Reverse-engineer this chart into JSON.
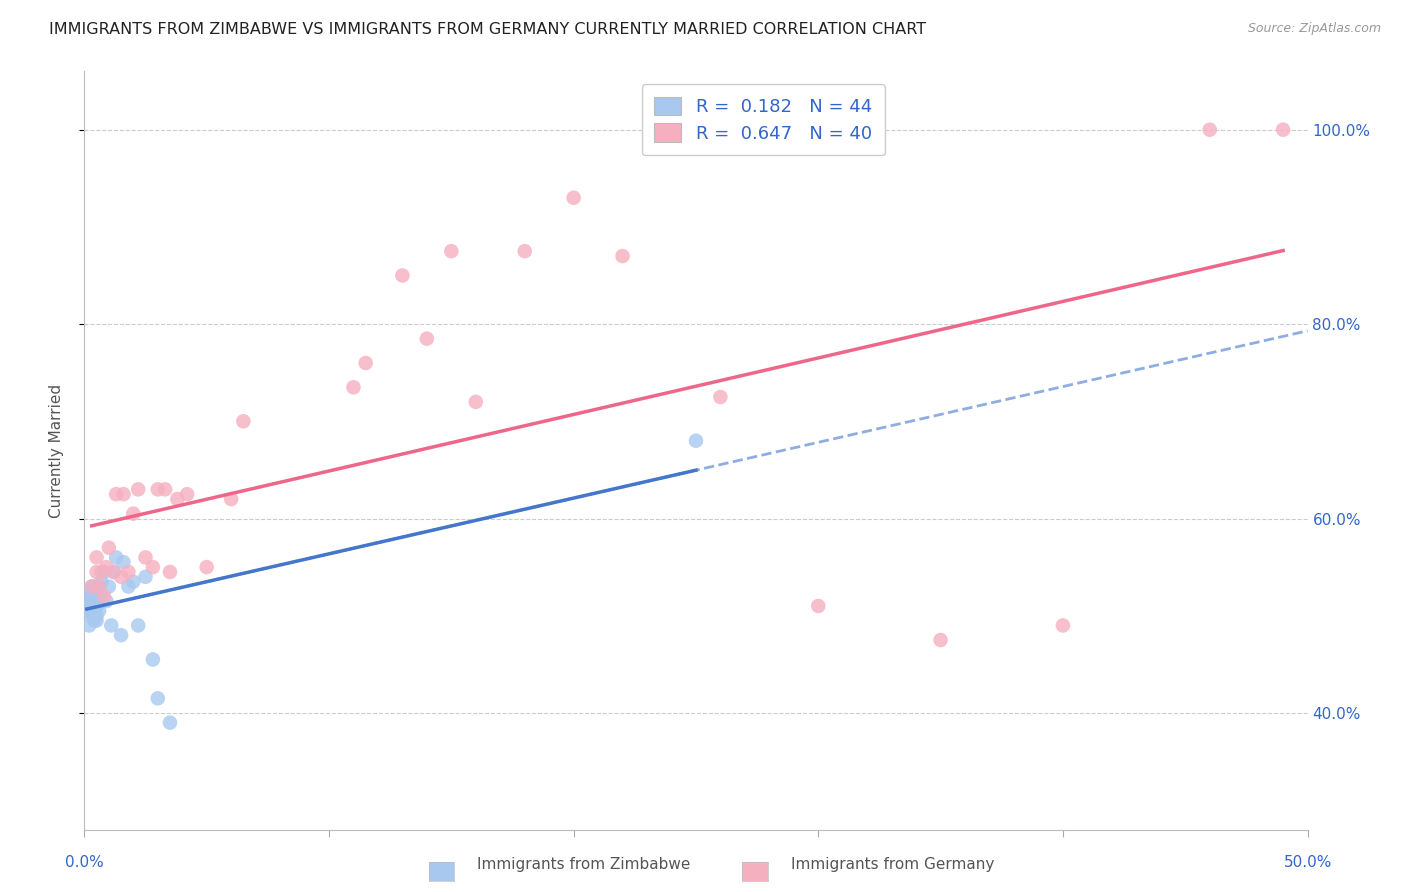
{
  "title": "IMMIGRANTS FROM ZIMBABWE VS IMMIGRANTS FROM GERMANY CURRENTLY MARRIED CORRELATION CHART",
  "source": "Source: ZipAtlas.com",
  "ylabel": "Currently Married",
  "ylabel_right_ticks": [
    "40.0%",
    "60.0%",
    "80.0%",
    "100.0%"
  ],
  "ylabel_right_vals": [
    0.4,
    0.6,
    0.8,
    1.0
  ],
  "xlim": [
    0.0,
    0.5
  ],
  "ylim": [
    0.28,
    1.06
  ],
  "zimbabwe_color": "#A8C8F0",
  "germany_color": "#F5B0C0",
  "zimbabwe_line_color": "#4477CC",
  "germany_line_color": "#EE6688",
  "legend_r_zimbabwe": "0.182",
  "legend_n_zimbabwe": "44",
  "legend_r_germany": "0.647",
  "legend_n_germany": "40",
  "zimbabwe_x": [
    0.001,
    0.001,
    0.001,
    0.002,
    0.002,
    0.002,
    0.002,
    0.002,
    0.003,
    0.003,
    0.003,
    0.003,
    0.003,
    0.003,
    0.004,
    0.004,
    0.004,
    0.004,
    0.004,
    0.005,
    0.005,
    0.005,
    0.005,
    0.005,
    0.006,
    0.006,
    0.007,
    0.007,
    0.008,
    0.009,
    0.01,
    0.011,
    0.012,
    0.013,
    0.015,
    0.016,
    0.018,
    0.02,
    0.022,
    0.025,
    0.028,
    0.03,
    0.035,
    0.25
  ],
  "zimbabwe_y": [
    0.505,
    0.51,
    0.52,
    0.49,
    0.505,
    0.515,
    0.52,
    0.525,
    0.5,
    0.51,
    0.515,
    0.52,
    0.525,
    0.53,
    0.495,
    0.505,
    0.51,
    0.52,
    0.53,
    0.495,
    0.5,
    0.51,
    0.515,
    0.52,
    0.505,
    0.53,
    0.52,
    0.535,
    0.545,
    0.515,
    0.53,
    0.49,
    0.545,
    0.56,
    0.48,
    0.555,
    0.53,
    0.535,
    0.49,
    0.54,
    0.455,
    0.415,
    0.39,
    0.68
  ],
  "germany_x": [
    0.003,
    0.005,
    0.005,
    0.006,
    0.007,
    0.008,
    0.009,
    0.01,
    0.012,
    0.013,
    0.015,
    0.016,
    0.018,
    0.02,
    0.022,
    0.025,
    0.028,
    0.03,
    0.033,
    0.035,
    0.038,
    0.042,
    0.05,
    0.06,
    0.065,
    0.11,
    0.115,
    0.13,
    0.14,
    0.15,
    0.16,
    0.18,
    0.2,
    0.22,
    0.26,
    0.3,
    0.35,
    0.4,
    0.46,
    0.49
  ],
  "germany_y": [
    0.53,
    0.545,
    0.56,
    0.53,
    0.545,
    0.52,
    0.55,
    0.57,
    0.545,
    0.625,
    0.54,
    0.625,
    0.545,
    0.605,
    0.63,
    0.56,
    0.55,
    0.63,
    0.63,
    0.545,
    0.62,
    0.625,
    0.55,
    0.62,
    0.7,
    0.735,
    0.76,
    0.85,
    0.785,
    0.875,
    0.72,
    0.875,
    0.93,
    0.87,
    0.725,
    0.51,
    0.475,
    0.49,
    1.0,
    1.0
  ],
  "grid_color": "#CCCCCC",
  "background_color": "#FFFFFF",
  "title_fontsize": 11.5,
  "axis_label_fontsize": 11,
  "tick_fontsize": 11
}
